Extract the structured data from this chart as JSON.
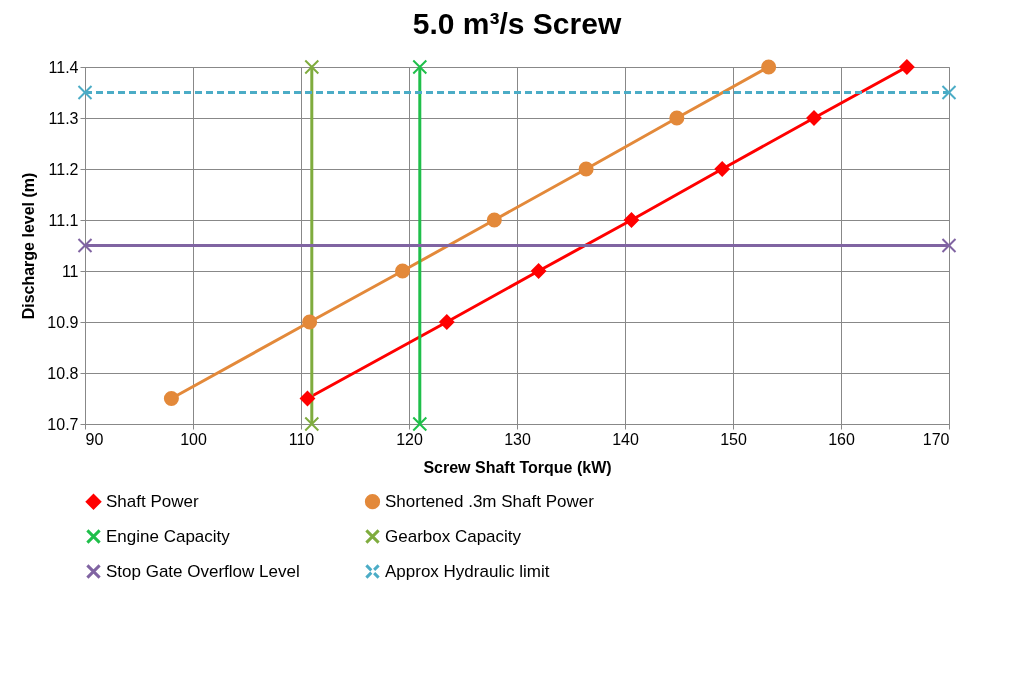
{
  "chart_data": {
    "type": "line",
    "title": "5.0 m³/s Screw",
    "xlabel": "Screw Shaft Torque (kW)",
    "ylabel": "Discharge level (m)",
    "xlim": [
      90,
      170
    ],
    "xticks": [
      90,
      100,
      110,
      120,
      130,
      140,
      150,
      160,
      170
    ],
    "ylim": [
      10.7,
      11.4
    ],
    "yticks": [
      10.7,
      10.8,
      10.9,
      11,
      11.1,
      11.2,
      11.3,
      11.4
    ],
    "grid": true,
    "legend": "bottom",
    "series": [
      {
        "name": "Shaft Power",
        "color": "#ff0000",
        "marker": "diamond",
        "line_style": "solid",
        "x": [
          110.6,
          123.5,
          132.0,
          140.6,
          149.0,
          157.5,
          166.1
        ],
        "values": [
          10.75,
          10.9,
          11.0,
          11.1,
          11.2,
          11.3,
          11.4
        ]
      },
      {
        "name": "Shortened .3m Shaft Power",
        "color": "#e3893a",
        "marker": "circle",
        "line_style": "solid",
        "x": [
          98.0,
          110.8,
          119.4,
          127.9,
          136.4,
          144.8,
          153.3
        ],
        "values": [
          10.75,
          10.9,
          11.0,
          11.1,
          11.2,
          11.3,
          11.4
        ]
      },
      {
        "name": "Engine Capacity",
        "color": "#1fbf4a",
        "marker": "cross",
        "line_style": "solid",
        "x": [
          121,
          121
        ],
        "values": [
          10.7,
          11.4
        ]
      },
      {
        "name": "Gearbox Capacity",
        "color": "#7fac3e",
        "marker": "cross",
        "line_style": "solid",
        "x": [
          111,
          111
        ],
        "values": [
          10.7,
          11.4
        ]
      },
      {
        "name": "Stop Gate Overflow Level",
        "color": "#8064a2",
        "marker": "cross",
        "line_style": "solid",
        "x": [
          90,
          170
        ],
        "values": [
          11.05,
          11.05
        ]
      },
      {
        "name": "Approx Hydraulic limit",
        "color": "#4bacc6",
        "marker": "cross",
        "line_style": "dashed",
        "x": [
          90,
          170
        ],
        "values": [
          11.35,
          11.35
        ]
      }
    ]
  }
}
